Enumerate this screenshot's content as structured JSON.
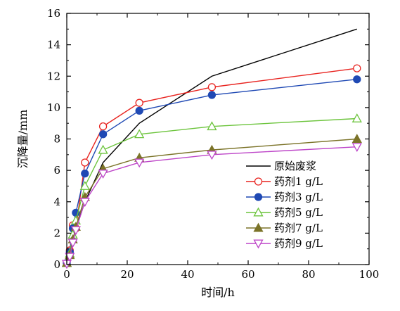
{
  "chart_data": {
    "type": "line",
    "title": "",
    "xlabel": "时间/h",
    "ylabel": "沉降量/mm",
    "xlim": [
      0,
      100
    ],
    "ylim": [
      0,
      16
    ],
    "xticks": [
      0,
      20,
      40,
      60,
      80,
      100
    ],
    "yticks": [
      0,
      2,
      4,
      6,
      8,
      10,
      12,
      14,
      16
    ],
    "xtick_labels": [
      "0",
      "20",
      "40",
      "60",
      "80",
      "100"
    ],
    "ytick_labels": [
      "0",
      "2",
      "4",
      "6",
      "8",
      "10",
      "12",
      "14",
      "16"
    ],
    "grid": false,
    "legend_position": "bottom-right",
    "series": [
      {
        "name": "原始废浆",
        "marker": "none",
        "color": "#000000",
        "x": [
          0,
          1,
          2,
          3,
          6,
          12,
          24,
          48,
          96
        ],
        "y": [
          0,
          0.6,
          1.4,
          2.3,
          4.0,
          6.5,
          9.0,
          12.0,
          15.0
        ]
      },
      {
        "name": "药剂1 g/L",
        "marker": "circle-open",
        "color": "#e8231f",
        "x": [
          0,
          1,
          2,
          3,
          6,
          12,
          24,
          48,
          96
        ],
        "y": [
          0.1,
          0.9,
          2.5,
          2.3,
          6.5,
          8.8,
          10.3,
          11.3,
          12.5
        ]
      },
      {
        "name": "药剂3 g/L",
        "marker": "circle-filled",
        "color": "#1f49b4",
        "x": [
          0,
          1,
          2,
          3,
          6,
          12,
          24,
          48,
          96
        ],
        "y": [
          0.1,
          0.8,
          2.3,
          3.3,
          5.8,
          8.3,
          9.8,
          10.8,
          11.8
        ]
      },
      {
        "name": "药剂5 g/L",
        "marker": "triangle-up-open",
        "color": "#6cc43c",
        "x": [
          0,
          1,
          2,
          3,
          6,
          12,
          24,
          48,
          96
        ],
        "y": [
          0.1,
          0.7,
          1.9,
          2.8,
          5.0,
          7.3,
          8.3,
          8.8,
          9.3
        ]
      },
      {
        "name": "药剂7 g/L",
        "marker": "triangle-up-filled",
        "color": "#7b7328",
        "x": [
          0,
          1,
          2,
          3,
          6,
          12,
          24,
          48,
          96
        ],
        "y": [
          0.1,
          0.6,
          1.6,
          2.4,
          4.3,
          6.1,
          6.8,
          7.3,
          8.0
        ]
      },
      {
        "name": "药剂9 g/L",
        "marker": "triangle-down-open",
        "color": "#bd45c8",
        "x": [
          0,
          1,
          2,
          3,
          6,
          12,
          24,
          48,
          96
        ],
        "y": [
          0.05,
          0.5,
          1.4,
          2.2,
          4.0,
          5.8,
          6.5,
          7.0,
          7.5
        ]
      }
    ]
  }
}
